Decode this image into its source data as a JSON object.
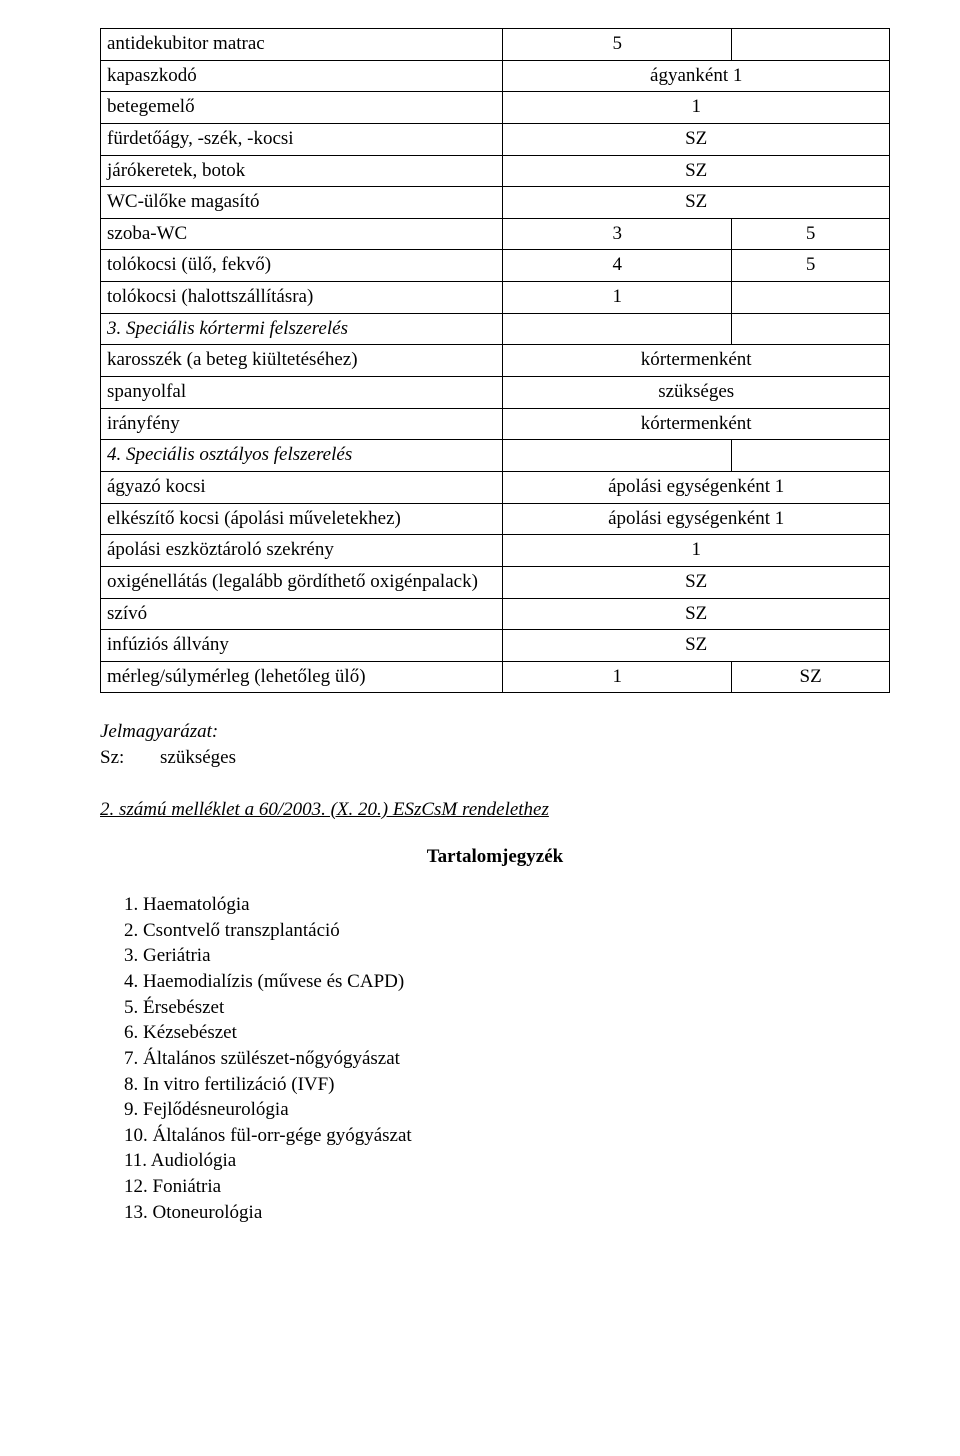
{
  "table": {
    "rows": [
      {
        "type": "3",
        "label": "antidekubitor matrac",
        "mid": "5",
        "rgt": ""
      },
      {
        "type": "2",
        "label": "kapaszkodó",
        "wide": "ágyanként 1"
      },
      {
        "type": "2",
        "label": "betegemelő",
        "wide": "1"
      },
      {
        "type": "2",
        "label": "fürdetőágy, -szék, -kocsi",
        "wide": "SZ"
      },
      {
        "type": "2",
        "label": "járókeretek, botok",
        "wide": "SZ"
      },
      {
        "type": "2",
        "label": "WC-ülőke magasító",
        "wide": "SZ"
      },
      {
        "type": "3",
        "label": "szoba-WC",
        "mid": "3",
        "rgt": "5"
      },
      {
        "type": "3",
        "label": "tolókocsi (ülő, fekvő)",
        "mid": "4",
        "rgt": "5"
      },
      {
        "type": "3",
        "label": "tolókocsi (halottszállításra)",
        "mid": "1",
        "rgt": ""
      },
      {
        "type": "3",
        "label": "3. Speciális kórtermi felszerelés",
        "italic": true,
        "mid": "",
        "rgt": ""
      },
      {
        "type": "2",
        "label": "karosszék (a beteg kiültetéséhez)",
        "wide": "kórtermenként"
      },
      {
        "type": "2",
        "label": "spanyolfal",
        "wide": "szükséges"
      },
      {
        "type": "2",
        "label": "irányfény",
        "wide": "kórtermenként"
      },
      {
        "type": "3",
        "label": "4. Speciális osztályos felszerelés",
        "italic": true,
        "mid": "",
        "rgt": ""
      },
      {
        "type": "2",
        "label": "ágyazó kocsi",
        "wide": "ápolási egységenként 1"
      },
      {
        "type": "2",
        "label": "elkészítő kocsi (ápolási műveletekhez)",
        "wide": "ápolási egységenként 1"
      },
      {
        "type": "2",
        "label": "ápolási eszköztároló szekrény",
        "wide": "1"
      },
      {
        "type": "2",
        "label": "oxigénellátás (legalább gördíthető oxigénpalack)",
        "wide": "SZ"
      },
      {
        "type": "2",
        "label": "szívó",
        "wide": "SZ"
      },
      {
        "type": "2",
        "label": "infúziós állvány",
        "wide": "SZ"
      },
      {
        "type": "3",
        "label": "mérleg/súlymérleg (lehetőleg ülő)",
        "mid": "1",
        "rgt": "SZ"
      }
    ]
  },
  "legend": {
    "title": "Jelmagyarázat:",
    "key": "Sz:",
    "value": "szükséges"
  },
  "attachment_title": "2. számú melléklet a 60/2003. (X. 20.) ESzCsM rendelethez",
  "toc_title": "Tartalomjegyzék",
  "toc_items": [
    "1. Haematológia",
    "2. Csontvelő transzplantáció",
    "3. Geriátria",
    "4. Haemodialízis (művese és CAPD)",
    "5. Érsebészet",
    "6. Kézsebészet",
    "7. Általános szülészet-nőgyógyászat",
    "8. In vitro fertilizáció (IVF)",
    "9. Fejlődésneurológia",
    "10. Általános fül-orr-gége gyógyászat",
    "11. Audiológia",
    "12. Foniátria",
    "13. Otoneurológia"
  ]
}
